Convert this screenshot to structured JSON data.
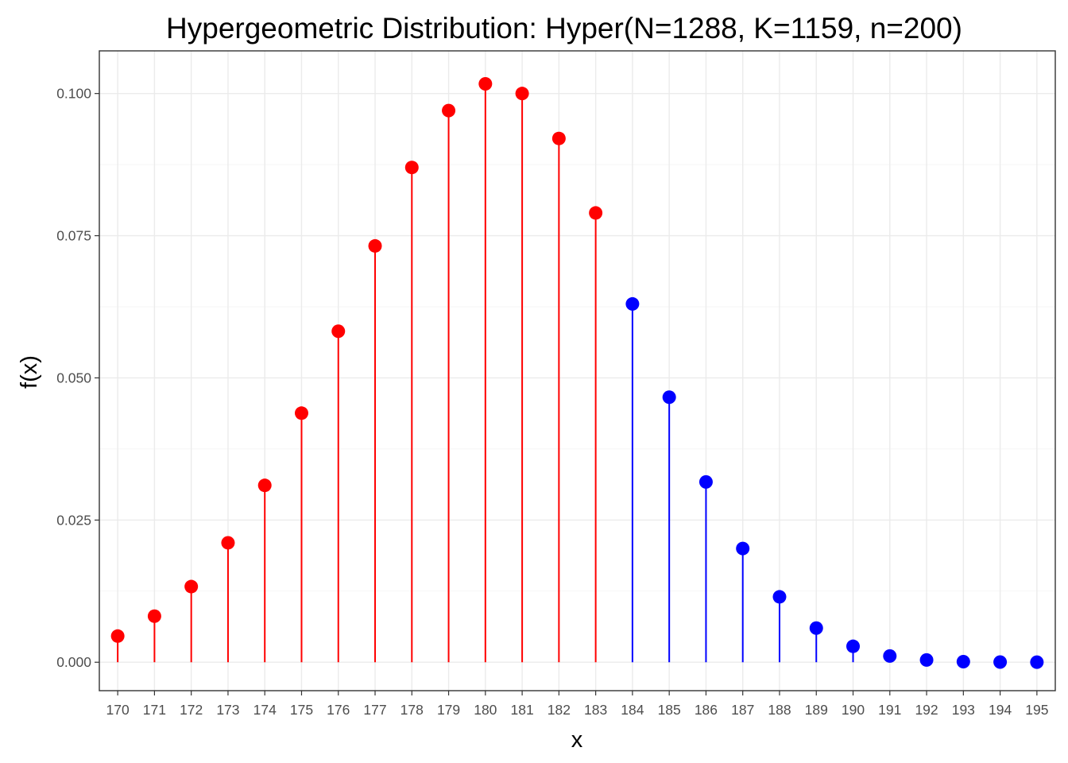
{
  "chart_data": {
    "type": "scatter",
    "title": "Hypergeometric Distribution: Hyper(N=1288, K=1159, n=200)",
    "xlabel": "x",
    "ylabel": "f(x)",
    "xlim": [
      169.5,
      195.5
    ],
    "ylim": [
      -0.005,
      0.1075
    ],
    "y_ticks": [
      0.0,
      0.025,
      0.05,
      0.075,
      0.1
    ],
    "y_tick_labels": [
      "0.000",
      "0.025",
      "0.050",
      "0.075",
      "0.100"
    ],
    "x_ticks": [
      170,
      171,
      172,
      173,
      174,
      175,
      176,
      177,
      178,
      179,
      180,
      181,
      182,
      183,
      184,
      185,
      186,
      187,
      188,
      189,
      190,
      191,
      192,
      193,
      194,
      195
    ],
    "grid": true,
    "colors": {
      "lower": "#ff0000",
      "upper": "#0000ff",
      "grid": "#ebebeb",
      "border": "#333333"
    },
    "series": [
      {
        "color": "#ff0000",
        "x": [
          170,
          171,
          172,
          173,
          174,
          175,
          176,
          177,
          178,
          179,
          180,
          181,
          182,
          183
        ],
        "values": [
          0.0046,
          0.0081,
          0.0133,
          0.021,
          0.0311,
          0.0438,
          0.0582,
          0.0732,
          0.087,
          0.097,
          0.1017,
          0.1,
          0.0921,
          0.079
        ]
      },
      {
        "color": "#0000ff",
        "x": [
          184,
          185,
          186,
          187,
          188,
          189,
          190,
          191,
          192,
          193,
          194,
          195
        ],
        "values": [
          0.063,
          0.0466,
          0.0317,
          0.02,
          0.0115,
          0.006,
          0.0028,
          0.0011,
          0.0004,
          0.0001,
          3e-05,
          1e-05
        ]
      }
    ]
  }
}
